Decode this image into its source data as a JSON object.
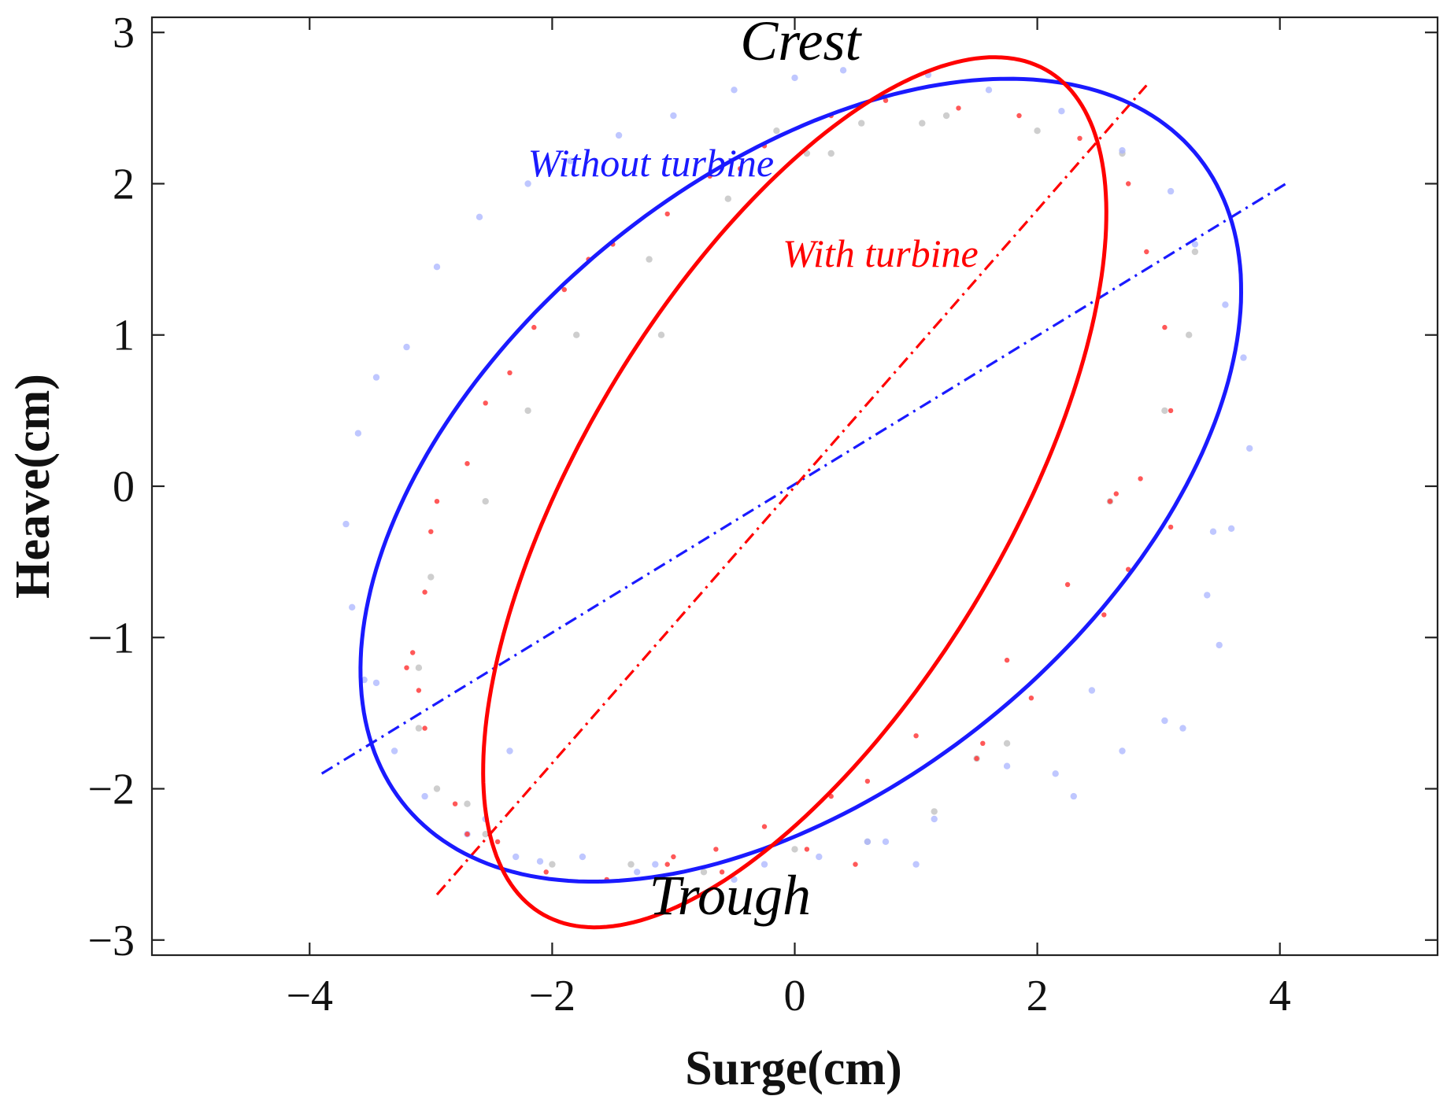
{
  "chart_data": {
    "type": "scatter",
    "title": "",
    "xlabel": "Surge(cm)",
    "ylabel": "Heave(cm)",
    "xlim": [
      -5.3,
      5.3
    ],
    "ylim": [
      -3.1,
      3.1
    ],
    "xticks": [
      -4,
      -2,
      0,
      2,
      4
    ],
    "yticks": [
      -3,
      -2,
      -1,
      0,
      1,
      2,
      3
    ],
    "xtick_labels": [
      "−4",
      "−2",
      "0",
      "2",
      "4"
    ],
    "ytick_labels": [
      "−3",
      "−2",
      "−1",
      "0",
      "1",
      "2",
      "3"
    ],
    "grid": false,
    "series": [
      {
        "name": "Without turbine",
        "color": "#1a1aff",
        "ellipse": {
          "cx": 0.05,
          "cy": 0.04,
          "a": 3.95,
          "b": 2.15,
          "angle_deg": 28
        },
        "principal_axis": {
          "x": [
            -3.9,
            4.05
          ],
          "y": [
            -1.9,
            2.0
          ]
        },
        "points": [
          [
            -3.7,
            -0.25
          ],
          [
            -3.65,
            -0.8
          ],
          [
            -3.55,
            -1.28
          ],
          [
            -3.6,
            0.35
          ],
          [
            -3.45,
            0.72
          ],
          [
            -3.2,
            0.92
          ],
          [
            -2.95,
            1.45
          ],
          [
            -2.6,
            1.78
          ],
          [
            -2.2,
            2.0
          ],
          [
            -1.85,
            2.15
          ],
          [
            -1.45,
            2.32
          ],
          [
            -1.0,
            2.45
          ],
          [
            -0.5,
            2.62
          ],
          [
            0.0,
            2.7
          ],
          [
            0.4,
            2.75
          ],
          [
            1.1,
            2.72
          ],
          [
            1.6,
            2.62
          ],
          [
            2.2,
            2.48
          ],
          [
            2.7,
            2.22
          ],
          [
            3.1,
            1.95
          ],
          [
            3.3,
            1.6
          ],
          [
            3.55,
            1.2
          ],
          [
            3.7,
            0.85
          ],
          [
            3.75,
            0.25
          ],
          [
            3.6,
            -0.28
          ],
          [
            3.5,
            -1.05
          ],
          [
            3.4,
            -0.72
          ],
          [
            3.05,
            -1.55
          ],
          [
            2.7,
            -1.75
          ],
          [
            2.45,
            -1.35
          ],
          [
            2.15,
            -1.9
          ],
          [
            1.75,
            -1.85
          ],
          [
            1.15,
            -2.2
          ],
          [
            0.75,
            -2.35
          ],
          [
            0.2,
            -2.45
          ],
          [
            -0.5,
            -2.6
          ],
          [
            -1.15,
            -2.5
          ],
          [
            -1.75,
            -2.45
          ],
          [
            -2.3,
            -2.45
          ],
          [
            -2.7,
            -2.3
          ],
          [
            -3.05,
            -2.05
          ],
          [
            -3.3,
            -1.75
          ],
          [
            -3.45,
            -1.3
          ],
          [
            -2.35,
            -1.75
          ],
          [
            -2.55,
            -2.2
          ],
          [
            -2.1,
            -2.48
          ],
          [
            -1.3,
            -2.55
          ],
          [
            -0.25,
            -2.5
          ],
          [
            0.6,
            -2.35
          ],
          [
            1.0,
            -2.5
          ],
          [
            2.3,
            -2.05
          ],
          [
            3.2,
            -1.6
          ],
          [
            3.45,
            -0.3
          ]
        ]
      },
      {
        "name": "With turbine",
        "color": "#ff0000",
        "ellipse": {
          "cx": 0.0,
          "cy": -0.04,
          "a": 3.5,
          "b": 1.62,
          "angle_deg": 50
        },
        "principal_axis": {
          "x": [
            -2.95,
            2.9
          ],
          "y": [
            -2.7,
            2.65
          ]
        },
        "points": [
          [
            -3.15,
            -1.1
          ],
          [
            -3.05,
            -0.7
          ],
          [
            -3.0,
            -0.3
          ],
          [
            -2.95,
            -0.1
          ],
          [
            -2.7,
            0.15
          ],
          [
            -2.55,
            0.55
          ],
          [
            -2.35,
            0.75
          ],
          [
            -2.15,
            1.05
          ],
          [
            -1.9,
            1.3
          ],
          [
            -1.5,
            1.6
          ],
          [
            -1.05,
            1.8
          ],
          [
            -0.7,
            2.05
          ],
          [
            -0.25,
            2.25
          ],
          [
            0.3,
            2.45
          ],
          [
            0.75,
            2.55
          ],
          [
            1.35,
            2.5
          ],
          [
            1.85,
            2.45
          ],
          [
            2.35,
            2.3
          ],
          [
            2.75,
            2.0
          ],
          [
            2.9,
            1.55
          ],
          [
            3.05,
            1.05
          ],
          [
            3.1,
            0.5
          ],
          [
            2.85,
            0.05
          ],
          [
            2.65,
            -0.05
          ],
          [
            2.75,
            -0.55
          ],
          [
            2.25,
            -0.65
          ],
          [
            1.75,
            -1.15
          ],
          [
            1.95,
            -1.4
          ],
          [
            1.55,
            -1.7
          ],
          [
            1.0,
            -1.65
          ],
          [
            0.6,
            -1.95
          ],
          [
            0.3,
            -2.05
          ],
          [
            -0.25,
            -2.25
          ],
          [
            -0.65,
            -2.4
          ],
          [
            -1.05,
            -2.5
          ],
          [
            -1.55,
            -2.6
          ],
          [
            -2.05,
            -2.55
          ],
          [
            -2.45,
            -2.35
          ],
          [
            -2.8,
            -2.1
          ],
          [
            -3.05,
            -1.6
          ],
          [
            -3.1,
            -1.35
          ],
          [
            -3.2,
            -1.2
          ],
          [
            -2.7,
            -2.3
          ],
          [
            -0.6,
            -2.55
          ],
          [
            0.5,
            -2.5
          ],
          [
            1.5,
            -1.8
          ],
          [
            2.55,
            -0.85
          ],
          [
            3.1,
            -0.27
          ],
          [
            2.6,
            -0.1
          ],
          [
            0.1,
            -2.4
          ],
          [
            -1.0,
            -2.45
          ],
          [
            -1.7,
            1.5
          ],
          [
            -0.45,
            2.1
          ]
        ]
      },
      {
        "name": "",
        "color": "#b4b4b4",
        "points": [
          [
            -3.1,
            -1.2
          ],
          [
            -3.0,
            -0.6
          ],
          [
            -2.55,
            -0.1
          ],
          [
            -2.2,
            0.5
          ],
          [
            -1.8,
            1.0
          ],
          [
            -1.2,
            1.5
          ],
          [
            -0.55,
            1.9
          ],
          [
            0.1,
            2.2
          ],
          [
            0.55,
            2.4
          ],
          [
            1.25,
            2.45
          ],
          [
            2.0,
            2.35
          ],
          [
            2.7,
            2.2
          ],
          [
            3.3,
            1.55
          ],
          [
            3.25,
            1.0
          ],
          [
            3.05,
            0.5
          ],
          [
            2.6,
            -0.1
          ],
          [
            1.75,
            -1.7
          ],
          [
            1.15,
            -2.15
          ],
          [
            0.6,
            -2.35
          ],
          [
            0.0,
            -2.4
          ],
          [
            -0.75,
            -2.55
          ],
          [
            -1.35,
            -2.5
          ],
          [
            -2.0,
            -2.5
          ],
          [
            -2.55,
            -2.3
          ],
          [
            -2.95,
            -2.0
          ],
          [
            -3.1,
            -1.6
          ],
          [
            -0.15,
            2.35
          ],
          [
            0.3,
            2.2
          ],
          [
            1.05,
            2.4
          ],
          [
            -2.7,
            -2.1
          ],
          [
            -1.1,
            1.0
          ],
          [
            1.5,
            -1.8
          ]
        ]
      }
    ],
    "annotations": [
      {
        "text": "Crest",
        "x": -0.45,
        "y": 2.82,
        "color": "#000000"
      },
      {
        "text": "Without turbine",
        "x": -2.2,
        "y": 2.05,
        "color": "#1a1aff"
      },
      {
        "text": "With turbine",
        "x": -0.1,
        "y": 1.45,
        "color": "#ff0000"
      },
      {
        "text": "Trough",
        "x": -1.2,
        "y": -2.83,
        "color": "#000000"
      }
    ]
  }
}
